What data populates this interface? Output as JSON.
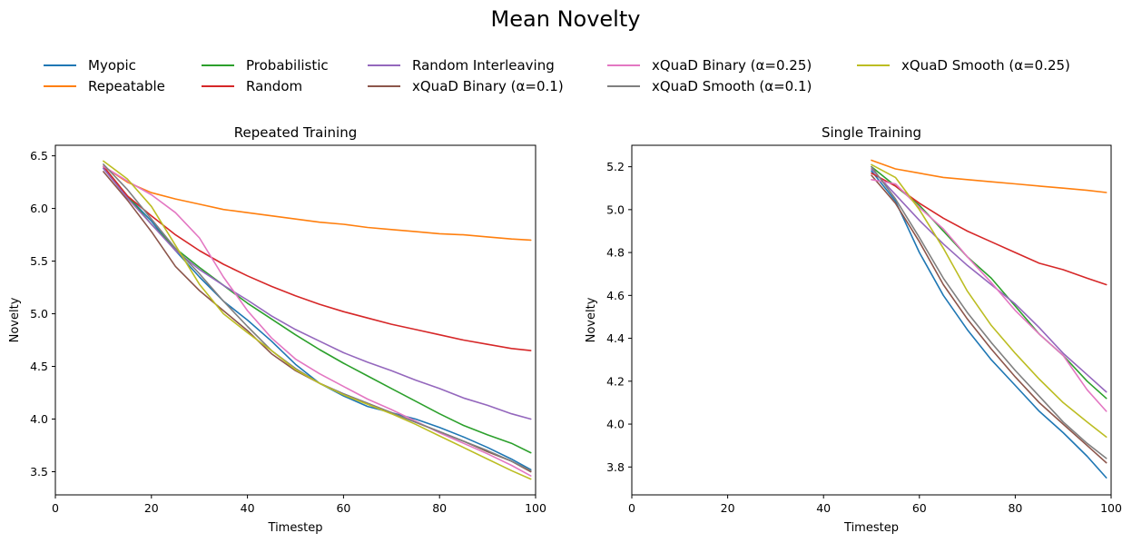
{
  "figure": {
    "title": "Mean Novelty"
  },
  "legend": {
    "columns": [
      [
        "Myopic",
        "Repeatable"
      ],
      [
        "Probabilistic",
        "Random"
      ],
      [
        "Random Interleaving",
        "xQuaD Binary (α=0.1)"
      ],
      [
        "xQuaD Binary (α=0.25)",
        "xQuaD Smooth (α=0.1)"
      ],
      [
        "xQuaD Smooth (α=0.25)"
      ]
    ]
  },
  "series_styles": [
    {
      "name": "Myopic",
      "color": "#1f77b4"
    },
    {
      "name": "Repeatable",
      "color": "#ff7f0e"
    },
    {
      "name": "Probabilistic",
      "color": "#2ca02c"
    },
    {
      "name": "Random",
      "color": "#d62728"
    },
    {
      "name": "Random Interleaving",
      "color": "#9467bd"
    },
    {
      "name": "xQuaD Binary (α=0.1)",
      "color": "#8c564b"
    },
    {
      "name": "xQuaD Binary (α=0.25)",
      "color": "#e377c2"
    },
    {
      "name": "xQuaD Smooth (α=0.1)",
      "color": "#7f7f7f"
    },
    {
      "name": "xQuaD Smooth (α=0.25)",
      "color": "#bcbd22"
    }
  ],
  "chart_data": [
    {
      "type": "line",
      "title": "Repeated Training",
      "xlabel": "Timestep",
      "ylabel": "Novelty",
      "xlim": [
        0,
        100
      ],
      "ylim": [
        3.28,
        6.6
      ],
      "xticks": [
        0,
        20,
        40,
        60,
        80,
        100
      ],
      "yticks": [
        3.5,
        4.0,
        4.5,
        5.0,
        5.5,
        6.0,
        6.5
      ],
      "grid": false,
      "series": [
        {
          "name": "Myopic",
          "x": [
            10,
            15,
            20,
            25,
            30,
            35,
            40,
            45,
            50,
            55,
            60,
            65,
            70,
            75,
            80,
            85,
            90,
            95,
            99
          ],
          "y": [
            6.38,
            6.12,
            5.88,
            5.6,
            5.35,
            5.12,
            4.94,
            4.74,
            4.52,
            4.34,
            4.22,
            4.12,
            4.06,
            4.0,
            3.92,
            3.83,
            3.73,
            3.62,
            3.52
          ]
        },
        {
          "name": "Repeatable",
          "x": [
            10,
            15,
            20,
            25,
            30,
            35,
            40,
            45,
            50,
            55,
            60,
            65,
            70,
            75,
            80,
            85,
            90,
            95,
            99
          ],
          "y": [
            6.4,
            6.25,
            6.15,
            6.09,
            6.04,
            5.99,
            5.96,
            5.93,
            5.9,
            5.87,
            5.85,
            5.82,
            5.8,
            5.78,
            5.76,
            5.75,
            5.73,
            5.71,
            5.7
          ]
        },
        {
          "name": "Probabilistic",
          "x": [
            10,
            15,
            20,
            25,
            30,
            35,
            40,
            45,
            50,
            55,
            60,
            65,
            70,
            75,
            80,
            85,
            90,
            95,
            99
          ],
          "y": [
            6.4,
            6.12,
            5.85,
            5.62,
            5.44,
            5.27,
            5.1,
            4.95,
            4.8,
            4.66,
            4.53,
            4.41,
            4.29,
            4.17,
            4.05,
            3.94,
            3.85,
            3.77,
            3.68
          ]
        },
        {
          "name": "Random",
          "x": [
            10,
            15,
            20,
            25,
            30,
            35,
            40,
            45,
            50,
            55,
            60,
            65,
            70,
            75,
            80,
            85,
            90,
            95,
            99
          ],
          "y": [
            6.4,
            6.12,
            5.93,
            5.75,
            5.6,
            5.47,
            5.36,
            5.26,
            5.17,
            5.09,
            5.02,
            4.96,
            4.9,
            4.85,
            4.8,
            4.75,
            4.71,
            4.67,
            4.65
          ]
        },
        {
          "name": "Random Interleaving",
          "x": [
            10,
            15,
            20,
            25,
            30,
            35,
            40,
            45,
            50,
            55,
            60,
            65,
            70,
            75,
            80,
            85,
            90,
            95,
            99
          ],
          "y": [
            6.38,
            6.1,
            5.85,
            5.6,
            5.42,
            5.27,
            5.13,
            4.98,
            4.85,
            4.74,
            4.63,
            4.54,
            4.46,
            4.37,
            4.29,
            4.2,
            4.13,
            4.05,
            4.0
          ]
        },
        {
          "name": "xQuaD Binary (α=0.1)",
          "x": [
            10,
            15,
            20,
            25,
            30,
            35,
            40,
            45,
            50,
            55,
            60,
            65,
            70,
            75,
            80,
            85,
            90,
            95,
            99
          ],
          "y": [
            6.35,
            6.08,
            5.78,
            5.45,
            5.22,
            5.03,
            4.84,
            4.62,
            4.46,
            4.34,
            4.24,
            4.15,
            4.06,
            3.97,
            3.88,
            3.79,
            3.69,
            3.6,
            3.5
          ]
        },
        {
          "name": "xQuaD Binary (α=0.25)",
          "x": [
            10,
            15,
            20,
            25,
            30,
            35,
            40,
            45,
            50,
            55,
            60,
            65,
            70,
            75,
            80,
            85,
            90,
            95,
            99
          ],
          "y": [
            6.4,
            6.26,
            6.13,
            5.96,
            5.72,
            5.35,
            5.03,
            4.77,
            4.57,
            4.43,
            4.31,
            4.19,
            4.09,
            3.98,
            3.87,
            3.77,
            3.67,
            3.56,
            3.46
          ]
        },
        {
          "name": "xQuaD Smooth (α=0.1)",
          "x": [
            10,
            15,
            20,
            25,
            30,
            35,
            40,
            45,
            50,
            55,
            60,
            65,
            70,
            75,
            80,
            85,
            90,
            95,
            99
          ],
          "y": [
            6.42,
            6.18,
            5.9,
            5.62,
            5.38,
            5.12,
            4.88,
            4.65,
            4.48,
            4.34,
            4.24,
            4.15,
            4.06,
            3.97,
            3.88,
            3.79,
            3.7,
            3.6,
            3.51
          ]
        },
        {
          "name": "xQuaD Smooth (α=0.25)",
          "x": [
            10,
            15,
            20,
            25,
            30,
            35,
            40,
            45,
            50,
            55,
            60,
            65,
            70,
            75,
            80,
            85,
            90,
            95,
            99
          ],
          "y": [
            6.45,
            6.28,
            6.02,
            5.65,
            5.28,
            5.0,
            4.82,
            4.65,
            4.47,
            4.34,
            4.23,
            4.14,
            4.05,
            3.95,
            3.84,
            3.73,
            3.62,
            3.51,
            3.43
          ]
        }
      ]
    },
    {
      "type": "line",
      "title": "Single Training",
      "xlabel": "Timestep",
      "ylabel": "Novelty",
      "xlim": [
        0,
        100
      ],
      "ylim": [
        3.67,
        5.3
      ],
      "xticks": [
        0,
        20,
        40,
        60,
        80,
        100
      ],
      "yticks": [
        3.8,
        4.0,
        4.2,
        4.4,
        4.6,
        4.8,
        5.0,
        5.2
      ],
      "grid": false,
      "series": [
        {
          "name": "Myopic",
          "x": [
            50,
            55,
            60,
            65,
            70,
            75,
            80,
            85,
            90,
            95,
            99
          ],
          "y": [
            5.18,
            5.04,
            4.8,
            4.6,
            4.44,
            4.3,
            4.18,
            4.06,
            3.96,
            3.85,
            3.75
          ]
        },
        {
          "name": "Repeatable",
          "x": [
            50,
            55,
            60,
            65,
            70,
            75,
            80,
            85,
            90,
            95,
            99
          ],
          "y": [
            5.23,
            5.19,
            5.17,
            5.15,
            5.14,
            5.13,
            5.12,
            5.11,
            5.1,
            5.09,
            5.08
          ]
        },
        {
          "name": "Probabilistic",
          "x": [
            50,
            55,
            60,
            65,
            70,
            75,
            80,
            85,
            90,
            95,
            99
          ],
          "y": [
            5.2,
            5.11,
            5.02,
            4.9,
            4.78,
            4.68,
            4.55,
            4.42,
            4.32,
            4.2,
            4.12
          ]
        },
        {
          "name": "Random",
          "x": [
            50,
            55,
            60,
            65,
            70,
            75,
            80,
            85,
            90,
            95,
            99
          ],
          "y": [
            5.17,
            5.11,
            5.03,
            4.96,
            4.9,
            4.85,
            4.8,
            4.75,
            4.72,
            4.68,
            4.65
          ]
        },
        {
          "name": "Random Interleaving",
          "x": [
            50,
            55,
            60,
            65,
            70,
            75,
            80,
            85,
            90,
            95,
            99
          ],
          "y": [
            5.19,
            5.07,
            4.95,
            4.84,
            4.74,
            4.65,
            4.56,
            4.45,
            4.33,
            4.23,
            4.15
          ]
        },
        {
          "name": "xQuaD Binary (α=0.1)",
          "x": [
            50,
            55,
            60,
            65,
            70,
            75,
            80,
            85,
            90,
            95,
            99
          ],
          "y": [
            5.16,
            5.03,
            4.85,
            4.65,
            4.49,
            4.35,
            4.22,
            4.1,
            4.0,
            3.9,
            3.82
          ]
        },
        {
          "name": "xQuaD Binary (α=0.25)",
          "x": [
            50,
            55,
            60,
            65,
            70,
            75,
            80,
            85,
            90,
            95,
            99
          ],
          "y": [
            5.14,
            5.12,
            5.01,
            4.91,
            4.78,
            4.66,
            4.53,
            4.42,
            4.32,
            4.16,
            4.06
          ]
        },
        {
          "name": "xQuaD Smooth (α=0.1)",
          "x": [
            50,
            55,
            60,
            65,
            70,
            75,
            80,
            85,
            90,
            95,
            99
          ],
          "y": [
            5.2,
            5.05,
            4.87,
            4.68,
            4.52,
            4.38,
            4.25,
            4.13,
            4.01,
            3.91,
            3.84
          ]
        },
        {
          "name": "xQuaD Smooth (α=0.25)",
          "x": [
            50,
            55,
            60,
            65,
            70,
            75,
            80,
            85,
            90,
            95,
            99
          ],
          "y": [
            5.21,
            5.15,
            5.0,
            4.82,
            4.62,
            4.46,
            4.33,
            4.21,
            4.1,
            4.01,
            3.94
          ]
        }
      ]
    }
  ]
}
